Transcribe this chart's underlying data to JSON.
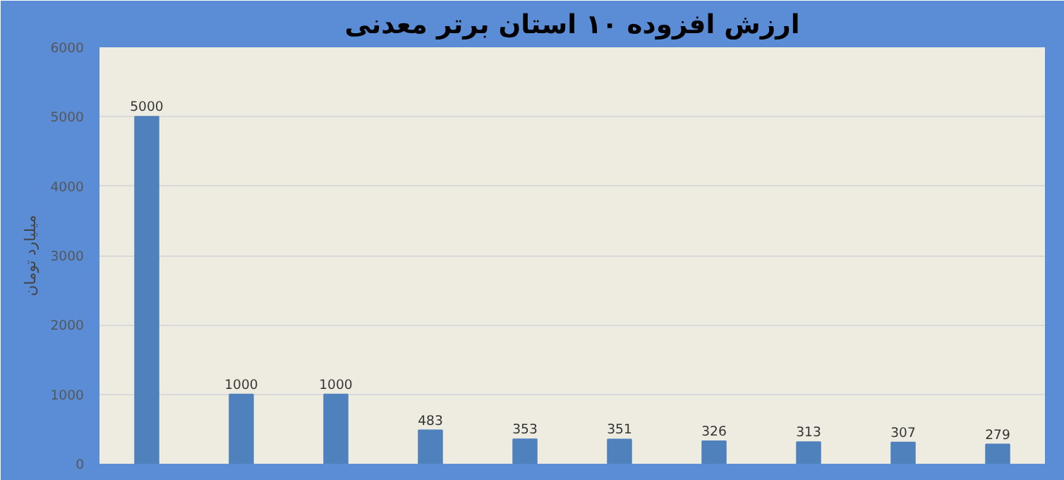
{
  "chart_data": {
    "type": "bar",
    "title": "ارزش افزوده ۱۰ استان برتر معدنی",
    "ylabel": "میلیارد تومان",
    "categories": [
      null,
      null,
      null,
      null,
      null,
      null,
      null,
      null,
      null,
      null
    ],
    "values": [
      5000,
      1000,
      1000,
      483,
      353,
      351,
      326,
      313,
      307,
      279
    ],
    "color": "#4f81bd",
    "ylim": [
      0,
      6000
    ],
    "yticks": [
      0,
      1000,
      2000,
      3000,
      4000,
      5000,
      6000
    ],
    "grid": "y",
    "data_labels": true,
    "tick_labels": "y"
  }
}
